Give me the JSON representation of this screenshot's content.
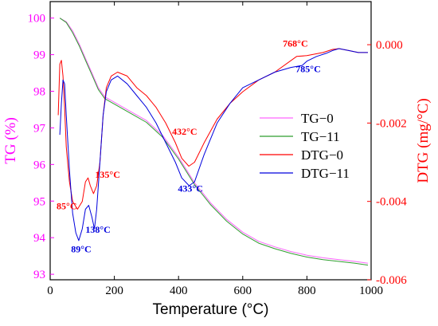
{
  "chart_data": {
    "type": "line",
    "title": "",
    "xlabel": "Temperature (°C)",
    "ylabel_left": "TG (%)",
    "ylabel_right": "DTG (mg/°C)",
    "xlim": [
      0,
      1000
    ],
    "ylim_left": [
      92.85,
      100.45
    ],
    "ylim_right": [
      -0.006,
      0.0011
    ],
    "x_ticks": [
      0,
      200,
      400,
      600,
      800,
      1000
    ],
    "y_left_ticks": [
      93,
      94,
      95,
      96,
      97,
      98,
      99,
      100
    ],
    "y_right_ticks": [
      0.0,
      -0.002,
      -0.004,
      -0.006
    ],
    "y_right_tick_labels": [
      "0.000",
      "-0.002",
      "-0.004",
      "-0.006"
    ],
    "grid": false,
    "legend_position": "center-right",
    "colors": {
      "left_axis": "#ff00ff",
      "right_axis": "#ff0000",
      "TG-0": "#ff66ff",
      "TG-11": "#2e9e2e",
      "DTG-0": "#ff0000",
      "DTG-11": "#0000dd"
    },
    "series": [
      {
        "name": "TG−0",
        "axis": "left",
        "x": [
          30,
          50,
          70,
          90,
          110,
          130,
          150,
          170,
          200,
          250,
          300,
          350,
          400,
          450,
          500,
          550,
          600,
          650,
          700,
          750,
          800,
          850,
          900,
          950,
          990
        ],
        "y": [
          100.0,
          99.9,
          99.65,
          99.3,
          98.9,
          98.5,
          98.1,
          97.85,
          97.7,
          97.45,
          97.2,
          96.8,
          96.2,
          95.5,
          94.95,
          94.5,
          94.15,
          93.9,
          93.75,
          93.62,
          93.52,
          93.45,
          93.4,
          93.35,
          93.3
        ]
      },
      {
        "name": "TG−11",
        "axis": "left",
        "x": [
          30,
          50,
          70,
          90,
          110,
          130,
          150,
          170,
          200,
          250,
          300,
          350,
          400,
          450,
          500,
          550,
          600,
          650,
          700,
          750,
          800,
          850,
          900,
          950,
          990
        ],
        "y": [
          100.0,
          99.88,
          99.6,
          99.25,
          98.85,
          98.45,
          98.05,
          97.8,
          97.65,
          97.4,
          97.15,
          96.75,
          96.15,
          95.45,
          94.9,
          94.45,
          94.1,
          93.85,
          93.7,
          93.57,
          93.47,
          93.4,
          93.35,
          93.3,
          93.25
        ]
      },
      {
        "name": "DTG−0",
        "axis": "right",
        "x": [
          25,
          30,
          35,
          40,
          45,
          50,
          60,
          70,
          85,
          100,
          110,
          118,
          125,
          135,
          145,
          155,
          165,
          175,
          190,
          210,
          240,
          270,
          300,
          330,
          360,
          390,
          410,
          432,
          450,
          480,
          520,
          560,
          600,
          650,
          700,
          768,
          800,
          850,
          880,
          900,
          930,
          960,
          990
        ],
        "y": [
          -0.0018,
          -0.0005,
          -0.0004,
          -0.0008,
          -0.0016,
          -0.0026,
          -0.0035,
          -0.004,
          -0.0042,
          -0.004,
          -0.0035,
          -0.0034,
          -0.0036,
          -0.0038,
          -0.0036,
          -0.003,
          -0.0018,
          -0.0011,
          -0.0008,
          -0.0007,
          -0.0008,
          -0.0011,
          -0.0013,
          -0.0016,
          -0.002,
          -0.0025,
          -0.0029,
          -0.0031,
          -0.003,
          -0.0025,
          -0.0019,
          -0.0015,
          -0.0012,
          -0.0009,
          -0.0007,
          -0.0003,
          -0.00028,
          -0.0002,
          -0.00012,
          -0.0001,
          -0.00015,
          -0.0002,
          -0.0002
        ]
      },
      {
        "name": "DTG−11",
        "axis": "right",
        "x": [
          30,
          35,
          40,
          45,
          50,
          60,
          70,
          80,
          89,
          100,
          110,
          120,
          130,
          138,
          145,
          155,
          165,
          175,
          190,
          210,
          240,
          270,
          300,
          330,
          360,
          390,
          410,
          433,
          450,
          480,
          520,
          560,
          600,
          650,
          700,
          750,
          785,
          800,
          830,
          860,
          880,
          900,
          930,
          960,
          990
        ],
        "y": [
          -0.0023,
          -0.0015,
          -0.0009,
          -0.001,
          -0.0018,
          -0.0032,
          -0.0043,
          -0.0048,
          -0.005,
          -0.0047,
          -0.0042,
          -0.0041,
          -0.0044,
          -0.0047,
          -0.0042,
          -0.003,
          -0.0018,
          -0.0012,
          -0.0009,
          -0.0008,
          -0.001,
          -0.0013,
          -0.0016,
          -0.002,
          -0.0025,
          -0.003,
          -0.0034,
          -0.0036,
          -0.0035,
          -0.0028,
          -0.002,
          -0.0015,
          -0.0011,
          -0.0009,
          -0.0007,
          -0.00058,
          -0.00053,
          -0.00042,
          -0.0003,
          -0.00022,
          -0.00015,
          -0.0001,
          -0.00015,
          -0.0002,
          -0.0002
        ]
      }
    ],
    "annotations": [
      {
        "text": "85°C",
        "color": "#ff0000"
      },
      {
        "text": "89°C",
        "color": "#0000dd"
      },
      {
        "text": "135°C",
        "color": "#ff0000"
      },
      {
        "text": "138°C",
        "color": "#0000dd"
      },
      {
        "text": "432°C",
        "color": "#ff0000"
      },
      {
        "text": "433°C",
        "color": "#0000dd"
      },
      {
        "text": "768°C",
        "color": "#ff0000"
      },
      {
        "text": "785°C",
        "color": "#0000dd"
      }
    ],
    "legend": [
      "TG−0",
      "TG−11",
      "DTG−0",
      "DTG−11"
    ]
  }
}
